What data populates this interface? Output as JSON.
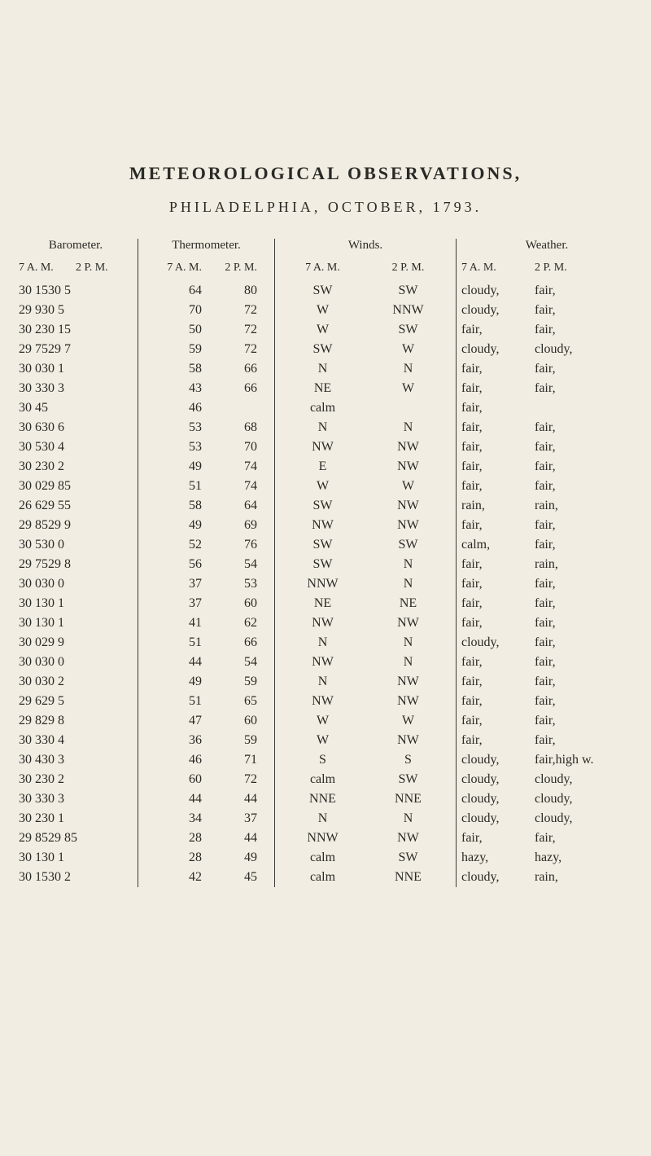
{
  "title": "METEOROLOGICAL OBSERVATIONS,",
  "subtitle": "PHILADELPHIA, OCTOBER, 1793.",
  "columns": {
    "barometer": {
      "header": "Barometer.",
      "sub_am": "7 A. M.",
      "sub_pm": "2 P. M."
    },
    "thermometer": {
      "header": "Thermometer.",
      "sub_am": "7 A. M.",
      "sub_pm": "2 P. M."
    },
    "winds": {
      "header": "Winds.",
      "sub_am": "7 A. M.",
      "sub_pm": "2 P. M."
    },
    "weather": {
      "header": "Weather.",
      "sub_am": "7 A. M.",
      "sub_pm": "2 P. M."
    }
  },
  "rows": [
    {
      "b_am": "30 15",
      "b_pm": "30 5",
      "t_am": "64",
      "t_pm": "80",
      "w_am": "SW",
      "w_pm": "SW",
      "x_am": "cloudy,",
      "x_pm": "fair,"
    },
    {
      "b_am": "29 9",
      "b_pm": "30 5",
      "t_am": "70",
      "t_pm": "72",
      "w_am": "W",
      "w_pm": "NNW",
      "x_am": "cloudy,",
      "x_pm": "fair,"
    },
    {
      "b_am": "30 2",
      "b_pm": "30 15",
      "t_am": "50",
      "t_pm": "72",
      "w_am": "W",
      "w_pm": "SW",
      "x_am": "fair,",
      "x_pm": "fair,"
    },
    {
      "b_am": "29 75",
      "b_pm": "29 7",
      "t_am": "59",
      "t_pm": "72",
      "w_am": "SW",
      "w_pm": "W",
      "x_am": "cloudy,",
      "x_pm": "cloudy,"
    },
    {
      "b_am": "30 0",
      "b_pm": "30 1",
      "t_am": "58",
      "t_pm": "66",
      "w_am": "N",
      "w_pm": "N",
      "x_am": "fair,",
      "x_pm": "fair,"
    },
    {
      "b_am": "30 3",
      "b_pm": "30 3",
      "t_am": "43",
      "t_pm": "66",
      "w_am": "NE",
      "w_pm": "W",
      "x_am": "fair,",
      "x_pm": "fair,"
    },
    {
      "b_am": "30 45",
      "b_pm": "",
      "t_am": "46",
      "t_pm": "",
      "w_am": "calm",
      "w_pm": "",
      "x_am": "fair,",
      "x_pm": ""
    },
    {
      "b_am": "30 6",
      "b_pm": "30 6",
      "t_am": "53",
      "t_pm": "68",
      "w_am": "N",
      "w_pm": "N",
      "x_am": "fair,",
      "x_pm": "fair,"
    },
    {
      "b_am": "30 5",
      "b_pm": "30 4",
      "t_am": "53",
      "t_pm": "70",
      "w_am": "NW",
      "w_pm": "NW",
      "x_am": "fair,",
      "x_pm": "fair,"
    },
    {
      "b_am": "30 2",
      "b_pm": "30 2",
      "t_am": "49",
      "t_pm": "74",
      "w_am": "E",
      "w_pm": "NW",
      "x_am": "fair,",
      "x_pm": "fair,"
    },
    {
      "b_am": "30 0",
      "b_pm": "29 85",
      "t_am": "51",
      "t_pm": "74",
      "w_am": "W",
      "w_pm": "W",
      "x_am": "fair,",
      "x_pm": "fair,"
    },
    {
      "b_am": "26 6",
      "b_pm": "29 55",
      "t_am": "58",
      "t_pm": "64",
      "w_am": "SW",
      "w_pm": "NW",
      "x_am": "rain,",
      "x_pm": "rain,"
    },
    {
      "b_am": "29 85",
      "b_pm": "29 9",
      "t_am": "49",
      "t_pm": "69",
      "w_am": "NW",
      "w_pm": "NW",
      "x_am": "fair,",
      "x_pm": "fair,"
    },
    {
      "b_am": "30 5",
      "b_pm": "30 0",
      "t_am": "52",
      "t_pm": "76",
      "w_am": "SW",
      "w_pm": "SW",
      "x_am": "calm,",
      "x_pm": "fair,"
    },
    {
      "b_am": "29 75",
      "b_pm": "29 8",
      "t_am": "56",
      "t_pm": "54",
      "w_am": "SW",
      "w_pm": "N",
      "x_am": "fair,",
      "x_pm": "rain,"
    },
    {
      "b_am": "30 0",
      "b_pm": "30 0",
      "t_am": "37",
      "t_pm": "53",
      "w_am": "NNW",
      "w_pm": "N",
      "x_am": "fair,",
      "x_pm": "fair,"
    },
    {
      "b_am": "30 1",
      "b_pm": "30 1",
      "t_am": "37",
      "t_pm": "60",
      "w_am": "NE",
      "w_pm": "NE",
      "x_am": "fair,",
      "x_pm": "fair,"
    },
    {
      "b_am": "30 1",
      "b_pm": "30 1",
      "t_am": "41",
      "t_pm": "62",
      "w_am": "NW",
      "w_pm": "NW",
      "x_am": "fair,",
      "x_pm": "fair,"
    },
    {
      "b_am": "30 0",
      "b_pm": "29 9",
      "t_am": "51",
      "t_pm": "66",
      "w_am": "N",
      "w_pm": "N",
      "x_am": "cloudy,",
      "x_pm": "fair,"
    },
    {
      "b_am": "30 0",
      "b_pm": "30 0",
      "t_am": "44",
      "t_pm": "54",
      "w_am": "NW",
      "w_pm": "N",
      "x_am": "fair,",
      "x_pm": "fair,"
    },
    {
      "b_am": "30 0",
      "b_pm": "30 2",
      "t_am": "49",
      "t_pm": "59",
      "w_am": "N",
      "w_pm": "NW",
      "x_am": "fair,",
      "x_pm": "fair,"
    },
    {
      "b_am": "29 6",
      "b_pm": "29 5",
      "t_am": "51",
      "t_pm": "65",
      "w_am": "NW",
      "w_pm": "NW",
      "x_am": "fair,",
      "x_pm": "fair,"
    },
    {
      "b_am": "29 8",
      "b_pm": "29 8",
      "t_am": "47",
      "t_pm": "60",
      "w_am": "W",
      "w_pm": "W",
      "x_am": "fair,",
      "x_pm": "fair,"
    },
    {
      "b_am": "30 3",
      "b_pm": "30 4",
      "t_am": "36",
      "t_pm": "59",
      "w_am": "W",
      "w_pm": "NW",
      "x_am": "fair,",
      "x_pm": "fair,"
    },
    {
      "b_am": "30 4",
      "b_pm": "30 3",
      "t_am": "46",
      "t_pm": "71",
      "w_am": "S",
      "w_pm": "S",
      "x_am": "cloudy,",
      "x_pm": "fair,high w."
    },
    {
      "b_am": "30 2",
      "b_pm": "30 2",
      "t_am": "60",
      "t_pm": "72",
      "w_am": "calm",
      "w_pm": "SW",
      "x_am": "cloudy,",
      "x_pm": "cloudy,"
    },
    {
      "b_am": "30 3",
      "b_pm": "30 3",
      "t_am": "44",
      "t_pm": "44",
      "w_am": "NNE",
      "w_pm": "NNE",
      "x_am": "cloudy,",
      "x_pm": "cloudy,"
    },
    {
      "b_am": "30 2",
      "b_pm": "30 1",
      "t_am": "34",
      "t_pm": "37",
      "w_am": "N",
      "w_pm": "N",
      "x_am": "cloudy,",
      "x_pm": "cloudy,"
    },
    {
      "b_am": "29 85",
      "b_pm": "29 85",
      "t_am": "28",
      "t_pm": "44",
      "w_am": "NNW",
      "w_pm": "NW",
      "x_am": "fair,",
      "x_pm": "fair,"
    },
    {
      "b_am": "30 1",
      "b_pm": "30 1",
      "t_am": "28",
      "t_pm": "49",
      "w_am": "calm",
      "w_pm": "SW",
      "x_am": "hazy,",
      "x_pm": "hazy,"
    },
    {
      "b_am": "30 15",
      "b_pm": "30 2",
      "t_am": "42",
      "t_pm": "45",
      "w_am": "calm",
      "w_pm": "NNE",
      "x_am": "cloudy,",
      "x_pm": "rain,"
    }
  ]
}
